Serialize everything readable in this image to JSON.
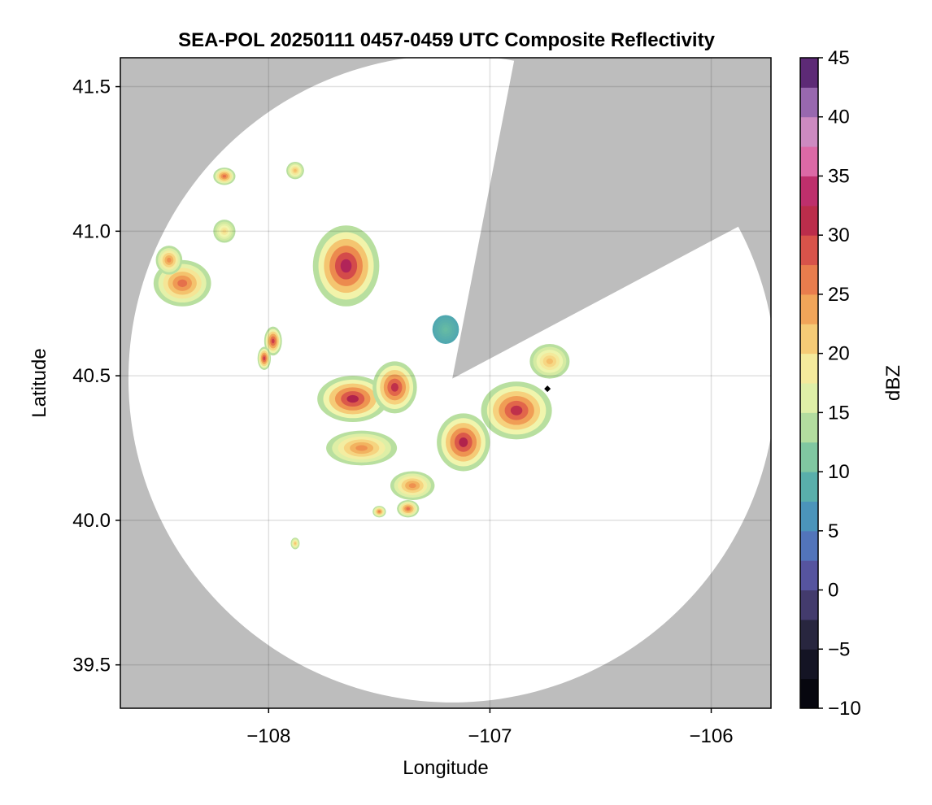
{
  "chart_data": {
    "type": "heatmap",
    "title": "SEA-POL 20250111 0457-0459 UTC Composite Reflectivity",
    "xlabel": "Longitude",
    "ylabel": "Latitude",
    "xlim": [
      -108.67,
      -105.73
    ],
    "ylim": [
      39.35,
      41.6
    ],
    "xticks": [
      -108,
      -107,
      -106
    ],
    "xtick_labels": [
      "−108",
      "−107",
      "−106"
    ],
    "yticks": [
      39.5,
      40.0,
      40.5,
      41.0,
      41.5
    ],
    "ytick_labels": [
      "39.5",
      "40.0",
      "40.5",
      "41.0",
      "41.5"
    ],
    "grid": true,
    "background_color": "#bdbdbd",
    "radar": {
      "center_lon": -107.17,
      "center_lat": 40.49,
      "range_deg_lat": 1.12,
      "blocked_sectors_deg_cw_from_north": [
        [
          11,
          62
        ]
      ]
    },
    "marker": {
      "lon": -106.74,
      "lat": 40.455,
      "shape": "diamond",
      "color": "#000000"
    },
    "colorbar": {
      "label": "dBZ",
      "min": -10,
      "max": 45,
      "step": 2.5,
      "ticks": [
        -10,
        -5,
        0,
        5,
        10,
        15,
        20,
        25,
        30,
        35,
        40,
        45
      ],
      "tick_labels": [
        "−10",
        "−5",
        "0",
        "5",
        "10",
        "15",
        "20",
        "25",
        "30",
        "35",
        "40",
        "45"
      ],
      "colormap_stops": [
        {
          "v": -10,
          "c": "#000004"
        },
        {
          "v": -5,
          "c": "#1a1a2e"
        },
        {
          "v": -2.5,
          "c": "#35324f"
        },
        {
          "v": 0,
          "c": "#51448a"
        },
        {
          "v": 2.5,
          "c": "#5a63b4"
        },
        {
          "v": 5,
          "c": "#4a85c0"
        },
        {
          "v": 7.5,
          "c": "#4ba3b3"
        },
        {
          "v": 10,
          "c": "#66bba3"
        },
        {
          "v": 12.5,
          "c": "#9ad29f"
        },
        {
          "v": 15,
          "c": "#cce89f"
        },
        {
          "v": 17.5,
          "c": "#f1f6ae"
        },
        {
          "v": 20,
          "c": "#f7dd8a"
        },
        {
          "v": 22.5,
          "c": "#f3b862"
        },
        {
          "v": 25,
          "c": "#ee914f"
        },
        {
          "v": 27.5,
          "c": "#e3684a"
        },
        {
          "v": 30,
          "c": "#cd3d4a"
        },
        {
          "v": 32.5,
          "c": "#a91c4c"
        },
        {
          "v": 35,
          "c": "#d3428c"
        },
        {
          "v": 37.5,
          "c": "#e48fc0"
        },
        {
          "v": 40,
          "c": "#b685c1"
        },
        {
          "v": 42.5,
          "c": "#7a4a9c"
        },
        {
          "v": 45,
          "c": "#3f0a4f"
        }
      ]
    },
    "echo_cells": [
      {
        "lon": -108.2,
        "lat": 41.19,
        "rlon": 0.05,
        "rlat": 0.03,
        "peak": 27
      },
      {
        "lon": -108.39,
        "lat": 40.82,
        "rlon": 0.13,
        "rlat": 0.08,
        "peak": 27
      },
      {
        "lon": -108.45,
        "lat": 40.9,
        "rlon": 0.06,
        "rlat": 0.05,
        "peak": 25
      },
      {
        "lon": -108.2,
        "lat": 41.0,
        "rlon": 0.05,
        "rlat": 0.04,
        "peak": 20
      },
      {
        "lon": -107.88,
        "lat": 41.21,
        "rlon": 0.04,
        "rlat": 0.03,
        "peak": 22
      },
      {
        "lon": -107.65,
        "lat": 40.88,
        "rlon": 0.15,
        "rlat": 0.14,
        "peak": 33
      },
      {
        "lon": -107.98,
        "lat": 40.62,
        "rlon": 0.04,
        "rlat": 0.05,
        "peak": 30
      },
      {
        "lon": -108.02,
        "lat": 40.56,
        "rlon": 0.03,
        "rlat": 0.04,
        "peak": 30
      },
      {
        "lon": -107.62,
        "lat": 40.42,
        "rlon": 0.16,
        "rlat": 0.08,
        "peak": 32
      },
      {
        "lon": -107.43,
        "lat": 40.46,
        "rlon": 0.1,
        "rlat": 0.09,
        "peak": 31
      },
      {
        "lon": -107.58,
        "lat": 40.25,
        "rlon": 0.16,
        "rlat": 0.06,
        "peak": 25
      },
      {
        "lon": -107.35,
        "lat": 40.12,
        "rlon": 0.1,
        "rlat": 0.05,
        "peak": 25
      },
      {
        "lon": -107.12,
        "lat": 40.27,
        "rlon": 0.12,
        "rlat": 0.1,
        "peak": 32
      },
      {
        "lon": -106.88,
        "lat": 40.38,
        "rlon": 0.16,
        "rlat": 0.1,
        "peak": 31
      },
      {
        "lon": -106.73,
        "lat": 40.55,
        "rlon": 0.09,
        "rlat": 0.06,
        "peak": 22
      },
      {
        "lon": -107.2,
        "lat": 40.66,
        "rlon": 0.06,
        "rlat": 0.05,
        "peak": 10
      },
      {
        "lon": -107.37,
        "lat": 40.04,
        "rlon": 0.05,
        "rlat": 0.03,
        "peak": 27
      },
      {
        "lon": -107.5,
        "lat": 40.03,
        "rlon": 0.03,
        "rlat": 0.02,
        "peak": 26
      },
      {
        "lon": -107.88,
        "lat": 39.92,
        "rlon": 0.02,
        "rlat": 0.02,
        "peak": 22
      }
    ]
  }
}
